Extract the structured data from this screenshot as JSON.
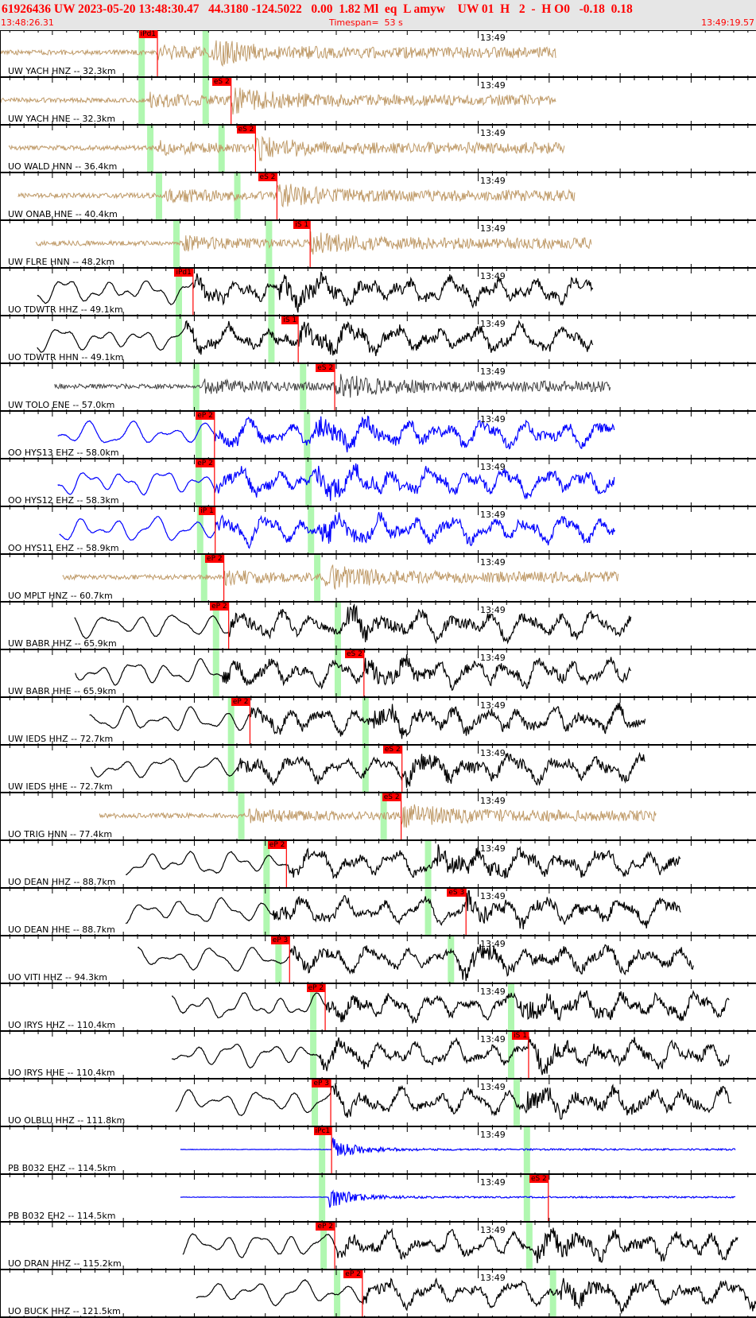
{
  "header": {
    "event_line": "61926436 UW 2023-05-20 13:48:30.47   44.3180 -124.5022   0.00  1.82 Ml  eq  L amyw    UW 01  H   2  -  H O0   -0.18  0.18",
    "start_time": "13:48:26.31",
    "timespan": "Timespan=  53 s",
    "end_time": "13:49:19.57"
  },
  "minute_label": "13:49",
  "colors": {
    "accelerometer": "#bf9a68",
    "broadband": "#000000",
    "short_period": "#0000ff",
    "pick": "#ff0000",
    "predicted": "#b0f7b0",
    "header_bg": "#e6e6e6"
  },
  "traces": [
    {
      "label": "UW YACH HNZ -- 32.3km",
      "color": "#bf9a68",
      "start": "13:48:26.31",
      "end": "13:49:05.50",
      "pick": {
        "label": "iPd1",
        "time": "13:48:37.40"
      },
      "predicted": [
        "13:48:36.29",
        "13:48:40.80"
      ]
    },
    {
      "label": "UW YACH HNE -- 32.3km",
      "color": "#bf9a68",
      "start": "13:48:26.31",
      "end": "13:49:05.50",
      "pick": {
        "label": "eS 2",
        "time": "13:48:42.59"
      },
      "predicted": [
        "13:48:36.29",
        "13:48:40.80"
      ]
    },
    {
      "label": "UO WALD HNN -- 36.4km",
      "color": "#bf9a68",
      "start": "13:48:26.92",
      "end": "13:49:06.11",
      "pick": {
        "label": "eS 2",
        "time": "13:48:44.31"
      },
      "predicted": [
        "13:48:36.90",
        "13:48:41.92"
      ]
    },
    {
      "label": "UW ONAB HNE -- 40.4km",
      "color": "#bf9a68",
      "start": "13:48:27.59",
      "end": "13:49:06.83",
      "pick": {
        "label": "eS 2",
        "time": "13:48:45.82"
      },
      "predicted": [
        "13:48:37.51",
        "13:48:43.03"
      ]
    },
    {
      "label": "UW FLRE HNN -- 48.2km",
      "color": "#bf9a68",
      "start": "13:48:28.82",
      "end": "13:49:08.00",
      "pick": {
        "label": "iS 1",
        "time": "13:48:48.16"
      },
      "predicted": [
        "13:48:38.74",
        "13:48:45.26"
      ]
    },
    {
      "label": "UO TDWTR HHZ -- 49.1km",
      "color": "#000000",
      "start": "13:48:28.93",
      "end": "13:49:08.12",
      "pick": {
        "label": "iPd1",
        "time": "13:48:39.91"
      },
      "predicted": [
        "13:48:38.91",
        "13:48:45.43"
      ]
    },
    {
      "label": "UO TDWTR HHN -- 49.1km",
      "color": "#000000",
      "start": "13:48:28.93",
      "end": "13:49:08.12",
      "pick": {
        "label": "iS 1",
        "time": "13:48:47.32"
      },
      "predicted": [
        "13:48:38.91",
        "13:48:45.43"
      ]
    },
    {
      "label": "UW TOLO ENE -- 57.0km",
      "color": "#404040",
      "start": "13:48:30.16",
      "end": "13:49:09.34",
      "pick": {
        "label": "eS 2",
        "time": "13:48:49.89"
      },
      "predicted": [
        "13:48:40.13",
        "13:48:47.66"
      ]
    },
    {
      "label": "OO HYS13 EHZ -- 58.0km",
      "color": "#0000ff",
      "start": "13:48:30.38",
      "end": "13:49:09.62",
      "pick": {
        "label": "eP 2",
        "time": "13:48:41.42"
      },
      "predicted": [
        "13:48:40.30",
        "13:48:47.94"
      ]
    },
    {
      "label": "OO HYS12 EHZ -- 58.3km",
      "color": "#0000ff",
      "start": "13:48:30.38",
      "end": "13:49:09.62",
      "pick": {
        "label": "eP 2",
        "time": "13:48:41.42"
      },
      "predicted": [
        "13:48:40.30",
        "13:48:48.05"
      ]
    },
    {
      "label": "OO HYS11 EHZ -- 58.9km",
      "color": "#0000ff",
      "start": "13:48:30.49",
      "end": "13:49:09.68",
      "pick": {
        "label": "iP 1",
        "time": "13:48:41.47"
      },
      "predicted": [
        "13:48:40.41",
        "13:48:48.22"
      ]
    },
    {
      "label": "UO MPLT HNZ -- 60.7km",
      "color": "#bf9a68",
      "start": "13:48:30.71",
      "end": "13:49:09.90",
      "pick": {
        "label": "eP 2",
        "time": "13:48:42.08"
      },
      "predicted": [
        "13:48:40.69",
        "13:48:48.66"
      ]
    },
    {
      "label": "UW BABR HHZ -- 65.9km",
      "color": "#000000",
      "start": "13:48:31.55",
      "end": "13:49:10.79",
      "pick": {
        "label": "eP 2",
        "time": "13:48:42.42"
      },
      "predicted": [
        "13:48:41.53",
        "13:48:50.11"
      ]
    },
    {
      "label": "UW BABR HHE -- 65.9km",
      "color": "#000000",
      "start": "13:48:31.61",
      "end": "13:49:10.79",
      "pick": {
        "label": "eS 2",
        "time": "13:48:51.95"
      },
      "predicted": [
        "13:48:41.53",
        "13:48:50.11"
      ]
    },
    {
      "label": "UW IEDS HHZ -- 72.7km",
      "color": "#000000",
      "start": "13:48:32.61",
      "end": "13:49:11.79",
      "pick": {
        "label": "eP 2",
        "time": "13:48:43.92"
      },
      "predicted": [
        "13:48:42.59",
        "13:48:52.06"
      ]
    },
    {
      "label": "UW IEDS HHE -- 72.7km",
      "color": "#000000",
      "start": "13:48:32.72",
      "end": "13:49:11.79",
      "pick": {
        "label": "eS 2",
        "time": "13:48:54.63"
      },
      "predicted": [
        "13:48:42.59",
        "13:48:52.06"
      ]
    },
    {
      "label": "UO TRIG HNN -- 77.4km",
      "color": "#bf9a68",
      "start": "13:48:33.33",
      "end": "13:49:12.58",
      "pick": {
        "label": "eS 2",
        "time": "13:48:54.57"
      },
      "predicted": [
        "13:48:43.31",
        "13:48:53.34"
      ]
    },
    {
      "label": "UO DEAN HHZ -- 88.7km",
      "color": "#000000",
      "start": "13:48:35.17",
      "end": "13:49:14.30",
      "pick": {
        "label": "eP 2",
        "time": "13:48:46.49"
      },
      "predicted": [
        "13:48:45.09",
        "13:48:56.47"
      ]
    },
    {
      "label": "UO DEAN HHE -- 88.7km",
      "color": "#000000",
      "start": "13:48:35.17",
      "end": "13:49:14.30",
      "pick": {
        "label": "eS 3",
        "time": "13:48:59.14"
      },
      "predicted": [
        "13:48:45.09",
        "13:48:56.47"
      ]
    },
    {
      "label": "UO VITI HHZ -- 94.3km",
      "color": "#000000",
      "start": "13:48:36.01",
      "end": "13:49:15.19",
      "pick": {
        "label": "eP 3",
        "time": "13:48:46.71"
      },
      "predicted": [
        "13:48:45.93",
        "13:48:58.08"
      ]
    },
    {
      "label": "UO IRYS HHZ -- 110.4km",
      "color": "#000000",
      "start": "13:48:38.41",
      "end": "13:49:17.70",
      "pick": {
        "label": "eP 2",
        "time": "13:48:49.22"
      },
      "predicted": [
        "13:48:48.38",
        "13:49:02.32"
      ]
    },
    {
      "label": "UO IRYS HHE -- 110.4km",
      "color": "#000000",
      "start": "13:48:38.41",
      "end": "13:49:17.70",
      "pick": {
        "label": "iS 1",
        "time": "13:49:03.55"
      },
      "predicted": [
        "13:48:48.38",
        "13:49:02.32"
      ]
    },
    {
      "label": "UO OLBLU HHZ -- 111.8km",
      "color": "#000000",
      "start": "13:48:38.68",
      "end": "13:49:17.87",
      "pick": {
        "label": "eP 3",
        "time": "13:48:49.61"
      },
      "predicted": [
        "13:48:48.49",
        "13:49:02.71"
      ]
    },
    {
      "label": "PB B032 EHZ -- 114.5km",
      "color": "#0000ff",
      "start": "13:48:39.02",
      "end": "13:49:18.15",
      "pick": {
        "label": "iPc1",
        "time": "13:48:49.67"
      },
      "predicted": [
        "13:48:49.00",
        "13:49:03.43"
      ]
    },
    {
      "label": "PB B032 EH2 -- 114.5km",
      "color": "#0000ff",
      "start": "13:48:39.02",
      "end": "13:49:18.15",
      "pick": {
        "label": "eS 2",
        "time": "13:49:04.94"
      },
      "predicted": [
        "13:48:49.00",
        "13:49:03.43"
      ]
    },
    {
      "label": "UO DRAN HHZ -- 115.2km",
      "color": "#000000",
      "start": "13:48:39.19",
      "end": "13:49:18.32",
      "pick": {
        "label": "eP 2",
        "time": "13:48:49.89"
      },
      "predicted": [
        "13:48:49.11",
        "13:49:03.60"
      ]
    },
    {
      "label": "UO BUCK HHZ -- 121.5km",
      "color": "#000000",
      "start": "13:48:40.13",
      "end": "13:49:19.57",
      "pick": {
        "label": "eP 2",
        "time": "13:48:51.84"
      },
      "predicted": [
        "13:48:50.06",
        "13:49:05.27"
      ]
    }
  ]
}
